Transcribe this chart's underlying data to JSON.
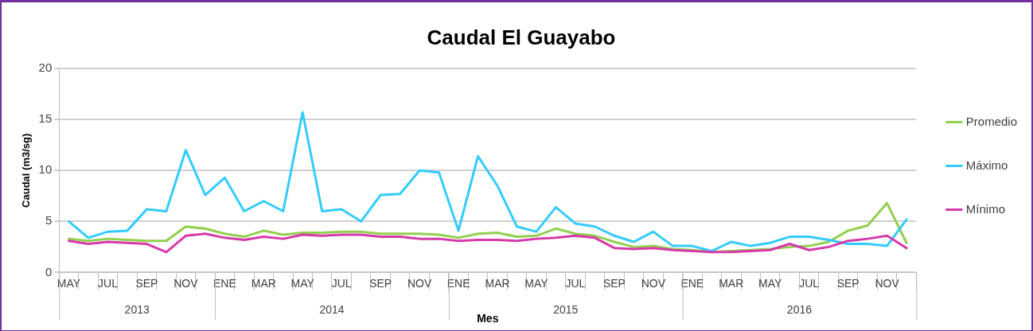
{
  "chart_data": {
    "type": "line",
    "title": "Caudal El Guayabo",
    "xlabel": "Mes",
    "ylabel": "Caudal (m3/sg)",
    "categories": [
      "MAY",
      null,
      "JUL",
      null,
      "SEP",
      null,
      "NOV",
      null,
      "ENE",
      null,
      "MAR",
      null,
      "MAY",
      null,
      "JUL",
      null,
      "SEP",
      null,
      "NOV",
      null,
      "ENE",
      null,
      "MAR",
      null,
      "MAY",
      null,
      "JUL",
      null,
      "SEP",
      null,
      "NOV",
      null,
      "ENE",
      null,
      "MAR",
      null,
      "MAY",
      null,
      "JUL",
      null,
      "SEP",
      null,
      "NOV",
      null
    ],
    "annotations": [
      "2013",
      "2014",
      "2015",
      "2016"
    ],
    "series": [
      {
        "name": "Promedio",
        "color": "#92d050",
        "values": [
          3.3,
          3.1,
          3.3,
          3.2,
          3.1,
          3.1,
          4.5,
          4.3,
          3.8,
          3.5,
          4.1,
          3.7,
          3.9,
          3.9,
          4.0,
          4.0,
          3.8,
          3.8,
          3.8,
          3.7,
          3.4,
          3.8,
          3.9,
          3.5,
          3.6,
          4.3,
          3.8,
          3.6,
          3.0,
          2.5,
          2.6,
          2.3,
          2.2,
          2.0,
          2.1,
          2.2,
          2.3,
          2.5,
          2.6,
          3.0,
          4.1,
          4.6,
          6.8,
          2.9
        ]
      },
      {
        "name": "Máximo",
        "color": "#33ccff",
        "values": [
          5.0,
          3.4,
          4.0,
          4.1,
          6.2,
          6.0,
          12.0,
          7.6,
          9.3,
          6.0,
          7.0,
          6.0,
          15.7,
          6.0,
          6.2,
          5.0,
          7.6,
          7.7,
          10.0,
          9.8,
          4.1,
          11.4,
          8.5,
          4.5,
          4.0,
          6.4,
          4.8,
          4.5,
          3.6,
          3.0,
          4.0,
          2.6,
          2.6,
          2.1,
          3.0,
          2.6,
          2.9,
          3.5,
          3.5,
          3.2,
          2.8,
          2.8,
          2.6,
          5.2
        ]
      },
      {
        "name": "Mínimo",
        "color": "#d63aa8",
        "values": [
          3.1,
          2.8,
          3.0,
          2.9,
          2.8,
          2.0,
          3.6,
          3.8,
          3.4,
          3.2,
          3.5,
          3.3,
          3.7,
          3.6,
          3.7,
          3.7,
          3.5,
          3.5,
          3.3,
          3.3,
          3.1,
          3.2,
          3.2,
          3.1,
          3.3,
          3.4,
          3.6,
          3.4,
          2.4,
          2.3,
          2.4,
          2.2,
          2.1,
          2.0,
          2.0,
          2.1,
          2.2,
          2.8,
          2.2,
          2.5,
          3.1,
          3.3,
          3.6,
          2.4
        ]
      }
    ],
    "ylim": [
      0,
      20
    ],
    "yticks": [
      0,
      5,
      10,
      15,
      20
    ],
    "grid": "y",
    "legend": "right",
    "marker": "none",
    "line_style": "solid"
  }
}
